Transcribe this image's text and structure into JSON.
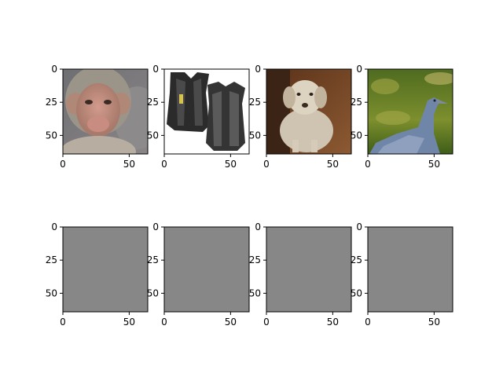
{
  "chart_data": [
    {
      "type": "image",
      "panel": 1,
      "content": "monkey photo",
      "xticks": [
        "0",
        "50"
      ],
      "yticks": [
        "0",
        "25",
        "50"
      ],
      "xlim": [
        0,
        64
      ],
      "ylim": [
        64,
        0
      ]
    },
    {
      "type": "image",
      "panel": 2,
      "content": "two black protective vests on white",
      "xticks": [
        "0",
        "50"
      ],
      "yticks": [
        "0",
        "25",
        "50"
      ],
      "xlim": [
        0,
        64
      ],
      "ylim": [
        64,
        0
      ]
    },
    {
      "type": "image",
      "panel": 3,
      "content": "light-colored dog sitting on wooden floor",
      "xticks": [
        "0",
        "50"
      ],
      "yticks": [
        "0",
        "25",
        "50"
      ],
      "xlim": [
        0,
        64
      ],
      "ylim": [
        64,
        0
      ]
    },
    {
      "type": "image",
      "panel": 4,
      "content": "grey heron-like bird against green foliage",
      "xticks": [
        "0",
        "50"
      ],
      "yticks": [
        "0",
        "25",
        "50"
      ],
      "xlim": [
        0,
        64
      ],
      "ylim": [
        64,
        0
      ]
    },
    {
      "type": "image",
      "panel": 5,
      "content": "uniform gray",
      "xticks": [
        "0",
        "50"
      ],
      "yticks": [
        "0",
        "25",
        "50"
      ],
      "xlim": [
        0,
        64
      ],
      "ylim": [
        64,
        0
      ]
    },
    {
      "type": "image",
      "panel": 6,
      "content": "uniform gray",
      "xticks": [
        "0",
        "50"
      ],
      "yticks": [
        "0",
        "25",
        "50"
      ],
      "xlim": [
        0,
        64
      ],
      "ylim": [
        64,
        0
      ]
    },
    {
      "type": "image",
      "panel": 7,
      "content": "uniform gray",
      "xticks": [
        "0",
        "50"
      ],
      "yticks": [
        "0",
        "25",
        "50"
      ],
      "xlim": [
        0,
        64
      ],
      "ylim": [
        64,
        0
      ]
    },
    {
      "type": "image",
      "panel": 8,
      "content": "uniform gray",
      "xticks": [
        "0",
        "50"
      ],
      "yticks": [
        "0",
        "25",
        "50"
      ],
      "xlim": [
        0,
        64
      ],
      "ylim": [
        64,
        0
      ]
    }
  ],
  "colors": {
    "gray_fill": "#878787",
    "axes_edge": "#000000"
  }
}
